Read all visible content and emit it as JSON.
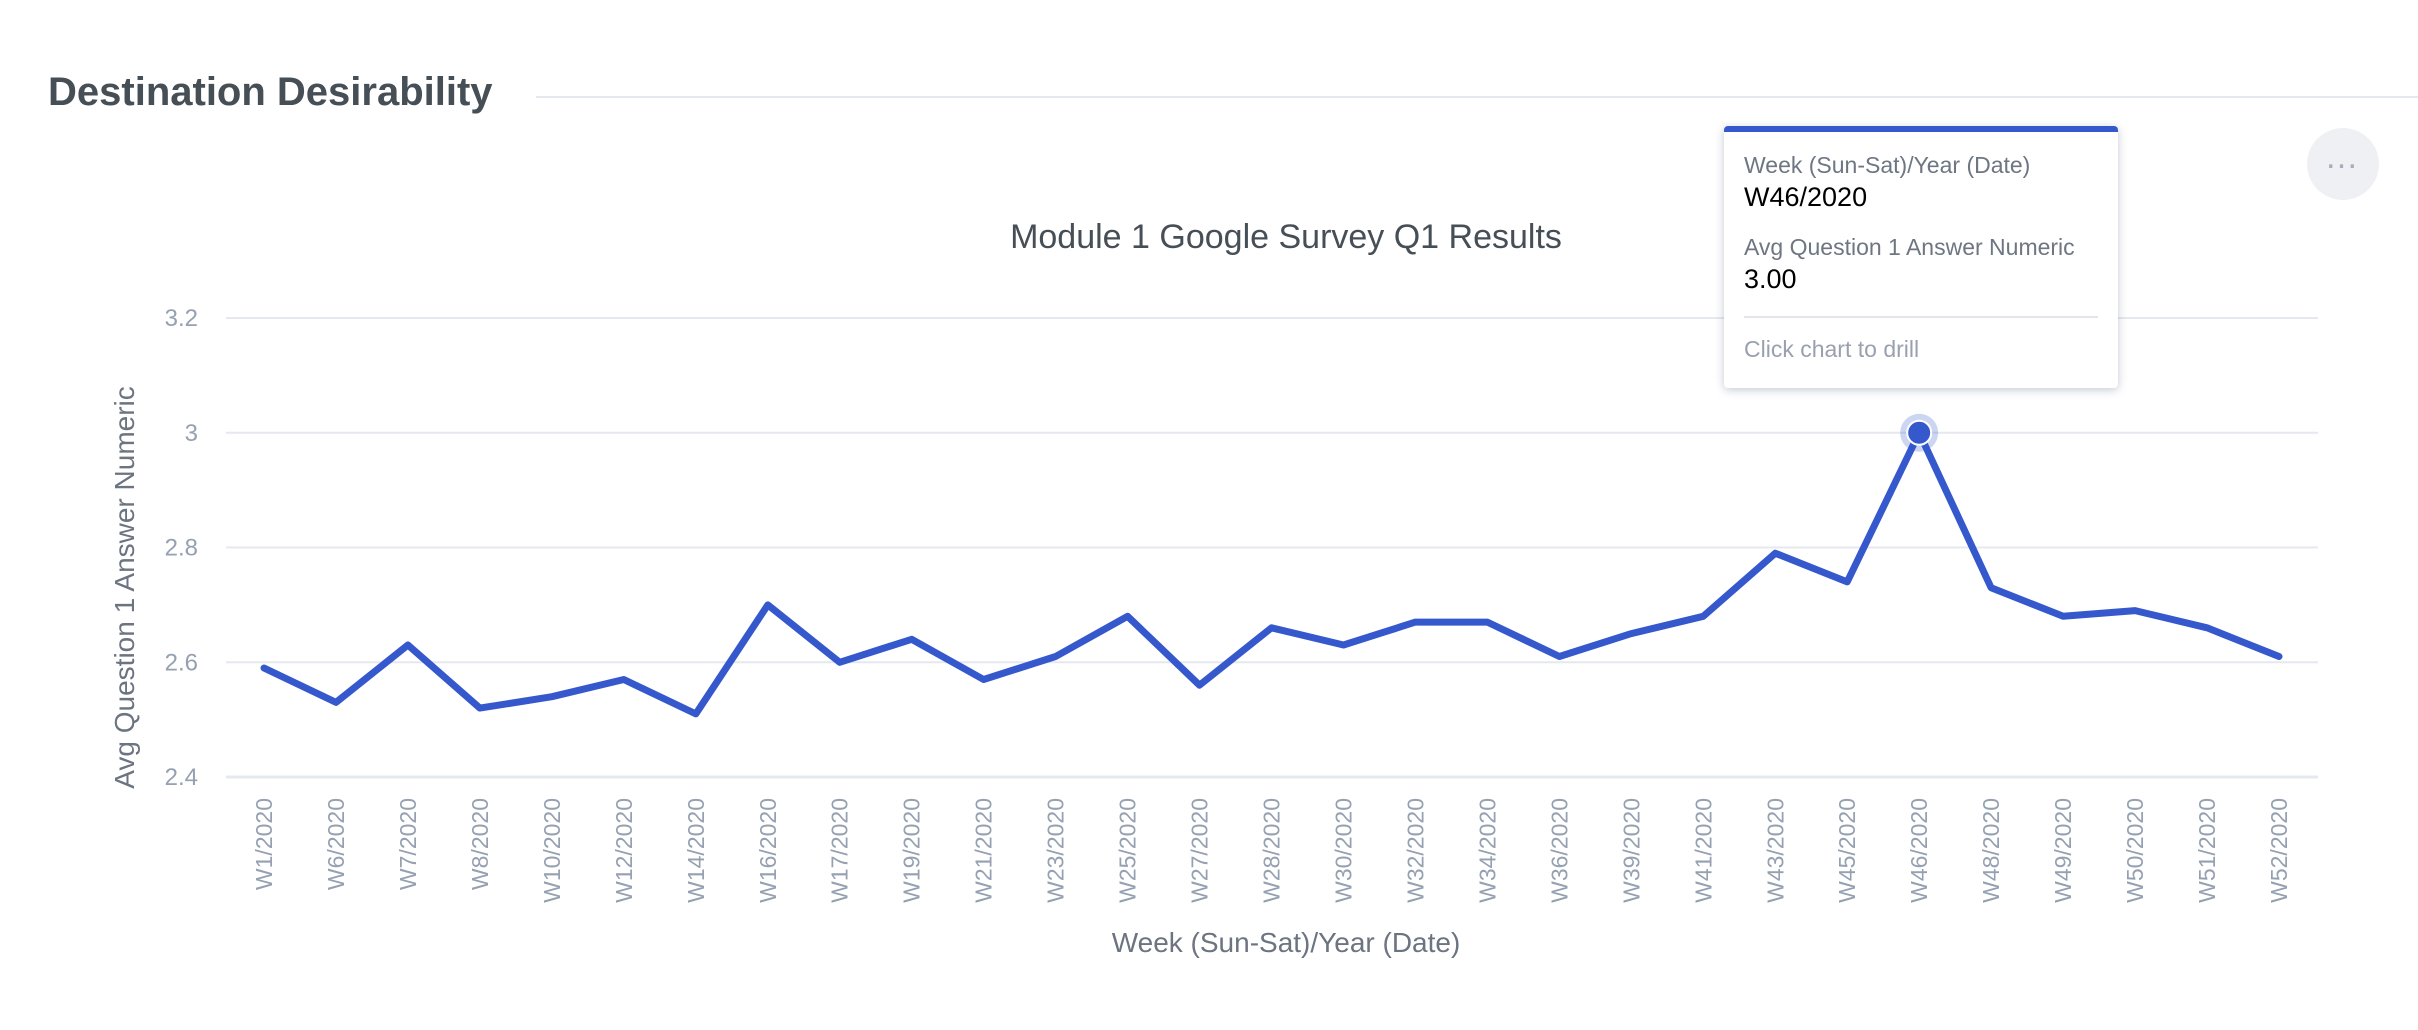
{
  "header": {
    "title": "Destination Desirability",
    "menu_icon": "more-horizontal-icon"
  },
  "colors": {
    "line": "#3558cc",
    "grid": "#e6e8f0",
    "axis_text": "#95a0b1",
    "title_text": "#464e56",
    "axis_label": "#6b7480"
  },
  "tooltip": {
    "x_label": "Week (Sun-Sat)/Year (Date)",
    "x_value": "W46/2020",
    "y_label": "Avg Question 1 Answer Numeric",
    "y_value": "3.00",
    "hint": "Click chart to drill"
  },
  "chart_data": {
    "type": "line",
    "title": "Module 1 Google Survey Q1 Results",
    "xlabel": "Week (Sun-Sat)/Year (Date)",
    "ylabel": "Avg Question 1 Answer Numeric",
    "ylim": [
      2.4,
      3.2
    ],
    "yticks": [
      "2.4",
      "2.6",
      "2.8",
      "3",
      "3.2"
    ],
    "grid": true,
    "highlighted": "W46/2020",
    "categories": [
      "W1/2020",
      "W6/2020",
      "W7/2020",
      "W8/2020",
      "W10/2020",
      "W12/2020",
      "W14/2020",
      "W16/2020",
      "W17/2020",
      "W19/2020",
      "W21/2020",
      "W23/2020",
      "W25/2020",
      "W27/2020",
      "W28/2020",
      "W30/2020",
      "W32/2020",
      "W34/2020",
      "W36/2020",
      "W39/2020",
      "W41/2020",
      "W43/2020",
      "W45/2020",
      "W46/2020",
      "W48/2020",
      "W49/2020",
      "W50/2020",
      "W51/2020",
      "W52/2020"
    ],
    "series": [
      {
        "values": [
          2.59,
          2.53,
          2.63,
          2.52,
          2.54,
          2.57,
          2.51,
          2.7,
          2.6,
          2.64,
          2.57,
          2.61,
          2.68,
          2.56,
          2.66,
          2.63,
          2.67,
          2.67,
          2.61,
          2.65,
          2.68,
          2.79,
          2.74,
          3.0,
          2.73,
          2.68,
          2.69,
          2.66,
          2.61
        ]
      }
    ]
  }
}
